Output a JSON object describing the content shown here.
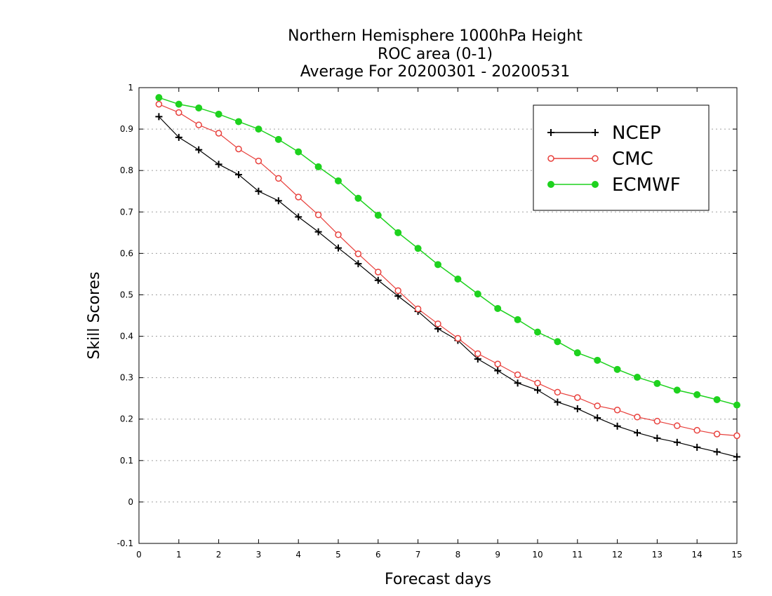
{
  "chart_data": {
    "type": "line",
    "title_lines": [
      "Northern Hemisphere 1000hPa Height",
      "ROC area (0-1)",
      "Average For 20200301 - 20200531"
    ],
    "xlabel": "Forecast days",
    "ylabel": "Skill Scores",
    "xlim": [
      0,
      15
    ],
    "ylim": [
      -0.1,
      1
    ],
    "xticks": [
      0,
      1,
      2,
      3,
      4,
      5,
      6,
      7,
      8,
      9,
      10,
      11,
      12,
      13,
      14,
      15
    ],
    "xtick_labels": [
      "0",
      "1",
      "2",
      "3",
      "4",
      "5",
      "6",
      "7",
      "8",
      "9",
      "10",
      "11",
      "12",
      "13",
      "14",
      "15"
    ],
    "yticks": [
      -0.1,
      0,
      0.1,
      0.2,
      0.3,
      0.4,
      0.5,
      0.6,
      0.7,
      0.8,
      0.9,
      1
    ],
    "ytick_labels": [
      "-0.1",
      "0",
      "0.1",
      "0.2",
      "0.3",
      "0.4",
      "0.5",
      "0.6",
      "0.7",
      "0.8",
      "0.9",
      "1"
    ],
    "grid": "horizontal-dotted",
    "legend_position": "top-right",
    "x": [
      0.5,
      1,
      1.5,
      2,
      2.5,
      3,
      3.5,
      4,
      4.5,
      5,
      5.5,
      6,
      6.5,
      7,
      7.5,
      8,
      8.5,
      9,
      9.5,
      10,
      10.5,
      11,
      11.5,
      12,
      12.5,
      13,
      13.5,
      14,
      14.5,
      15
    ],
    "series": [
      {
        "name": "NCEP",
        "color": "#000000",
        "marker": "plus",
        "values": [
          0.93,
          0.88,
          0.85,
          0.815,
          0.79,
          0.75,
          0.727,
          0.688,
          0.652,
          0.613,
          0.575,
          0.535,
          0.497,
          0.46,
          0.418,
          0.39,
          0.345,
          0.317,
          0.287,
          0.27,
          0.241,
          0.225,
          0.203,
          0.183,
          0.167,
          0.154,
          0.144,
          0.132,
          0.121,
          0.109
        ]
      },
      {
        "name": "CMC",
        "color": "#e8403c",
        "marker": "open-circle",
        "values": [
          0.96,
          0.94,
          0.91,
          0.89,
          0.852,
          0.823,
          0.781,
          0.736,
          0.693,
          0.645,
          0.599,
          0.555,
          0.51,
          0.466,
          0.43,
          0.395,
          0.358,
          0.333,
          0.307,
          0.287,
          0.265,
          0.252,
          0.232,
          0.222,
          0.205,
          0.195,
          0.184,
          0.173,
          0.164,
          0.16
        ]
      },
      {
        "name": "ECMWF",
        "color": "#1ed21e",
        "marker": "filled-circle",
        "values": [
          0.976,
          0.96,
          0.951,
          0.936,
          0.918,
          0.9,
          0.875,
          0.845,
          0.809,
          0.775,
          0.733,
          0.692,
          0.65,
          0.612,
          0.573,
          0.538,
          0.502,
          0.467,
          0.44,
          0.41,
          0.387,
          0.36,
          0.342,
          0.32,
          0.301,
          0.286,
          0.27,
          0.259,
          0.247,
          0.234
        ]
      }
    ]
  }
}
